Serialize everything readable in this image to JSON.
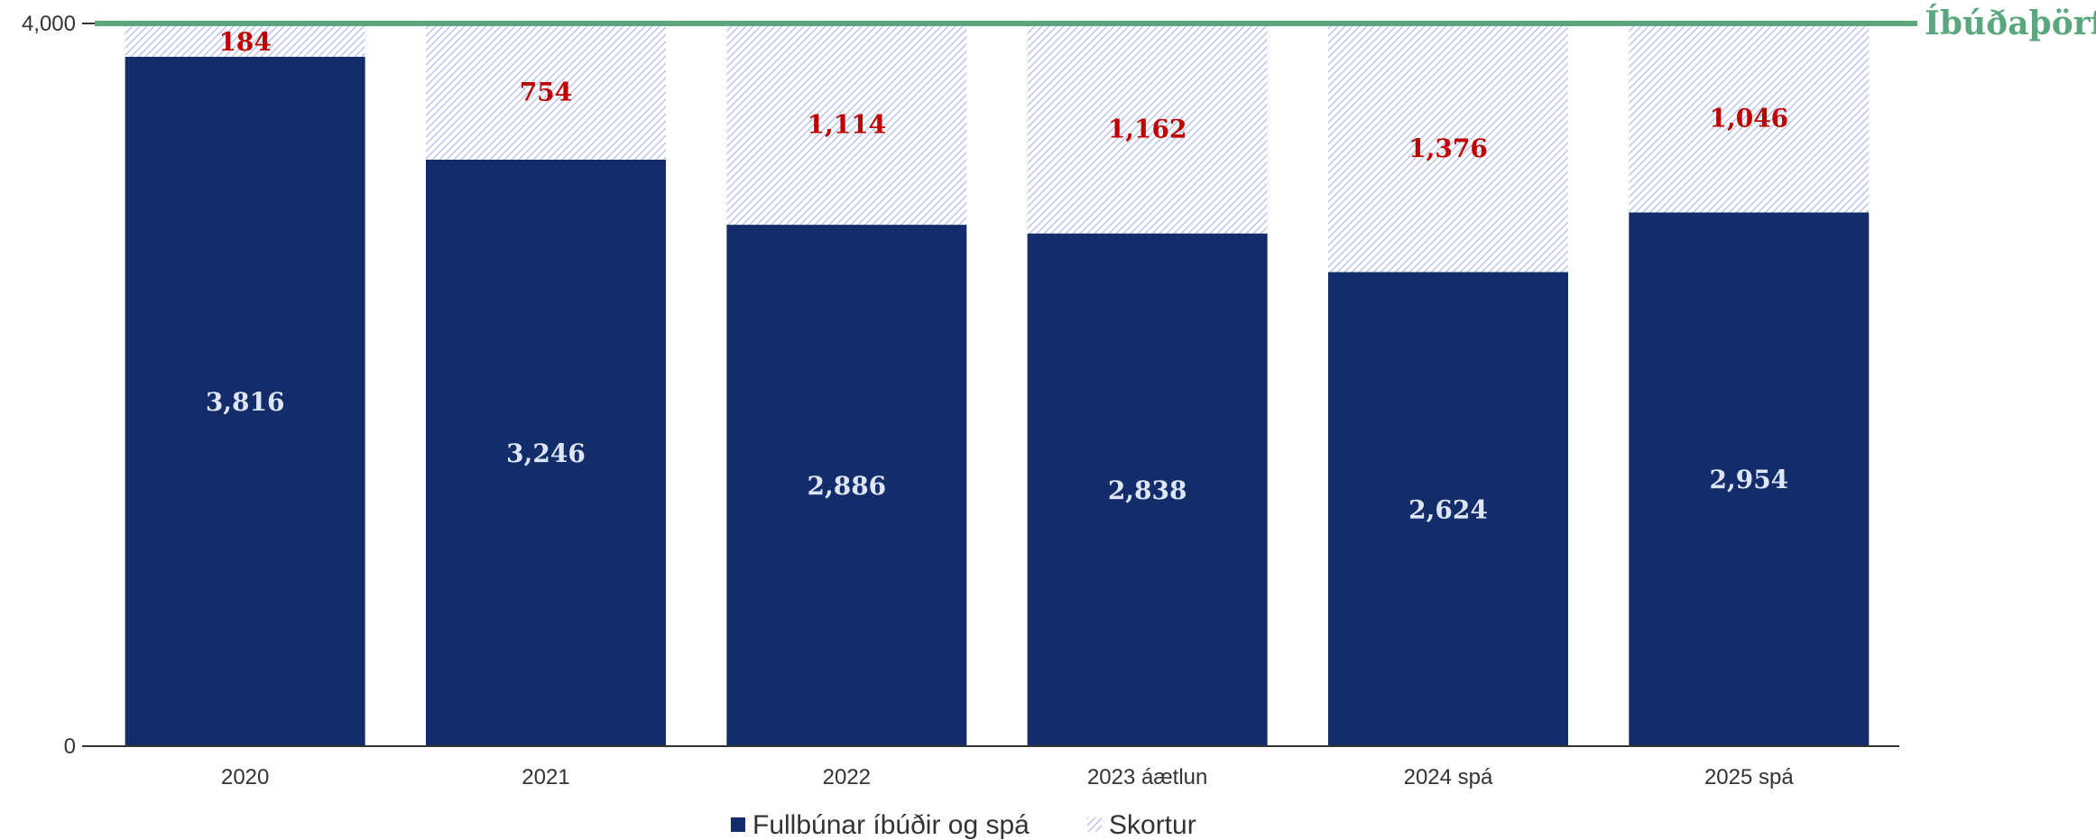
{
  "chart_data": {
    "type": "bar",
    "stacked": true,
    "categories": [
      "2020",
      "2021",
      "2022",
      "2023 áætlun",
      "2024 spá",
      "2025 spá"
    ],
    "series": [
      {
        "name": "Fullbúnar íbúðir og spá",
        "values": [
          3816,
          3246,
          2886,
          2838,
          2624,
          2954
        ],
        "color": "#122d69"
      },
      {
        "name": "Skortur",
        "values": [
          184,
          754,
          1114,
          1162,
          1376,
          1046
        ],
        "color": "#a9b9e8",
        "pattern": "hatched"
      }
    ],
    "value_labels": {
      "completed": [
        "3,816",
        "3,246",
        "2,886",
        "2,838",
        "2,624",
        "2,954"
      ],
      "shortage": [
        "184",
        "754",
        "1,114",
        "1,162",
        "1,376",
        "1,046"
      ]
    },
    "reference_line": {
      "label": "Íbúðaþörf",
      "value": 4000,
      "color": "#5aa77e"
    },
    "yaxis": {
      "ticks": [
        0,
        4000
      ],
      "tick_labels": [
        "0",
        "4,000"
      ],
      "ylim": [
        0,
        4000
      ]
    },
    "legend": {
      "position": "bottom-center"
    },
    "grid": false,
    "colors": {
      "label_shortage": "#c00000",
      "label_completed": "#dde5f7",
      "axis": "#333333"
    }
  }
}
